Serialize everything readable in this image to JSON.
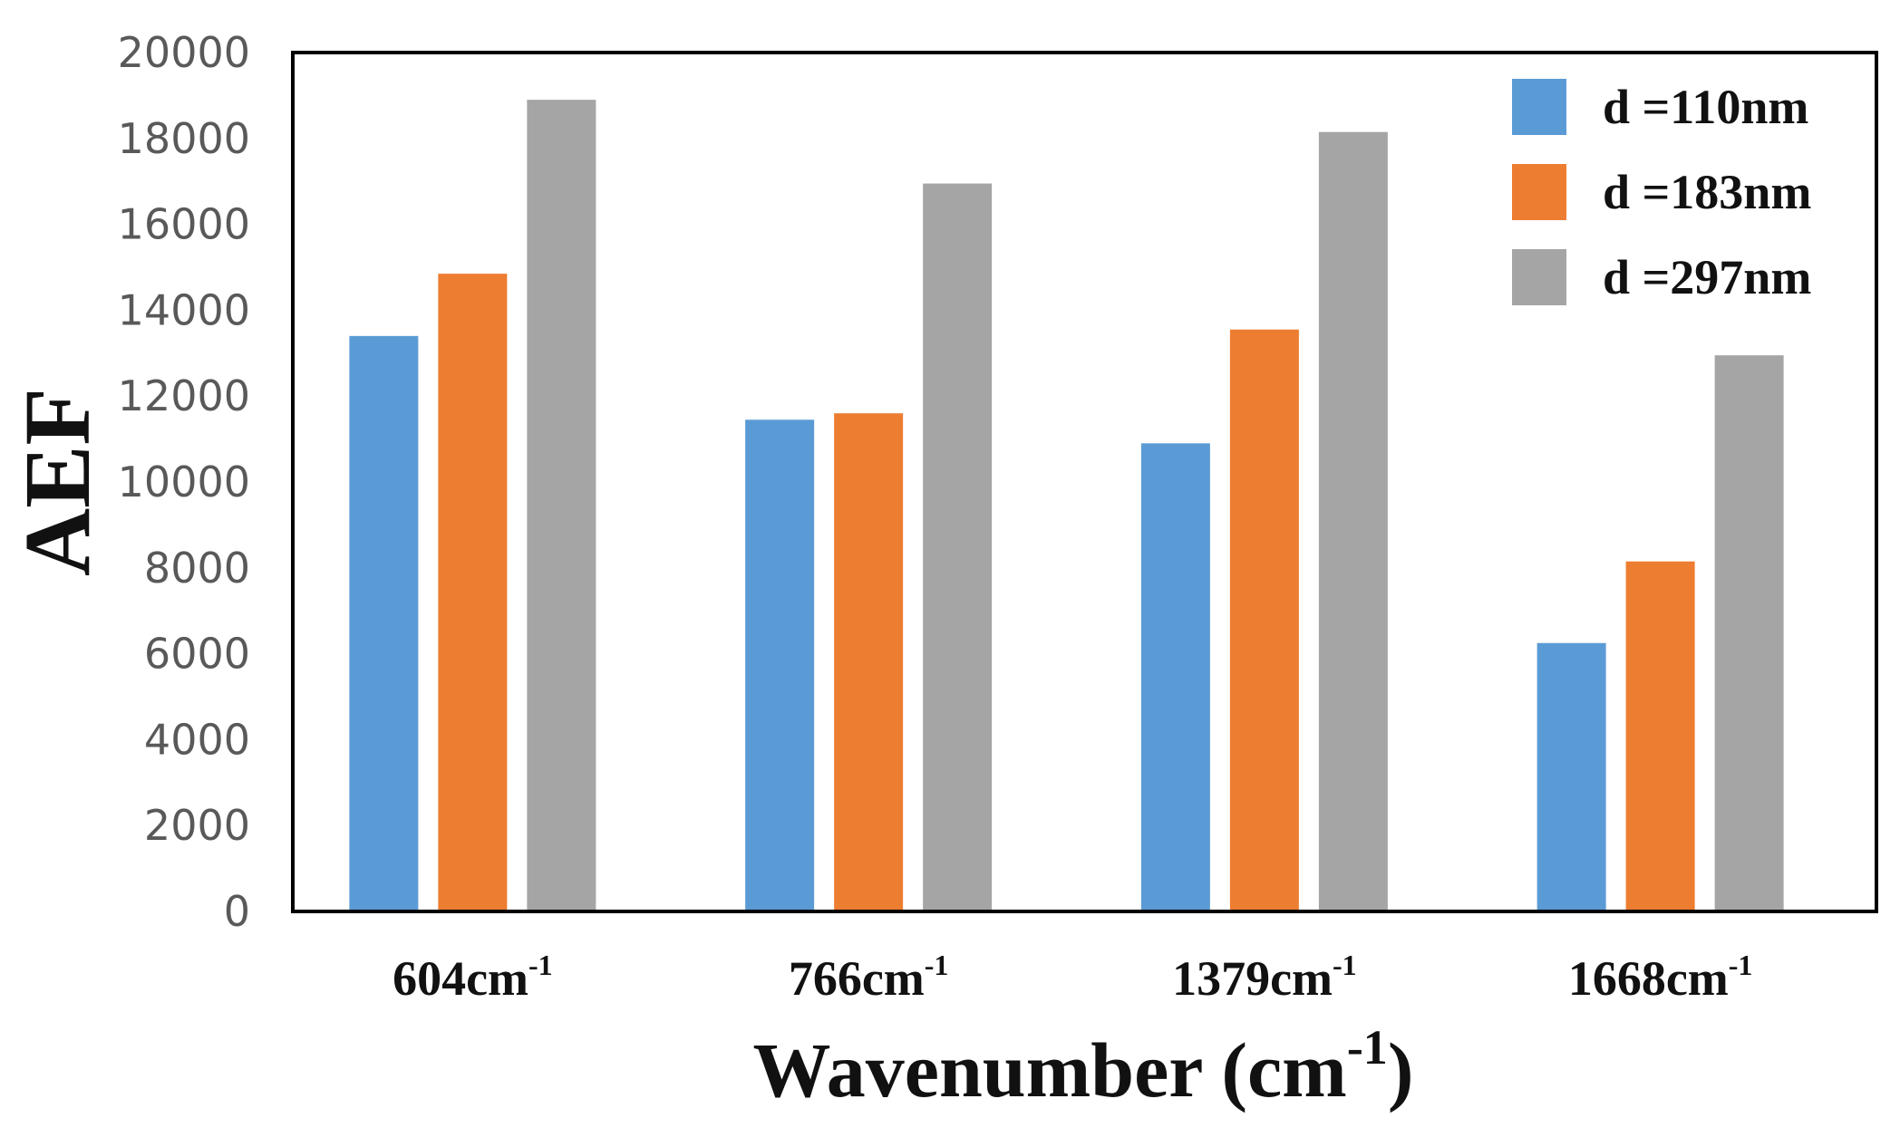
{
  "chart_data": {
    "type": "bar",
    "title": "",
    "xlabel": "Wavenumber (cm",
    "xlabel_sup": "-1",
    "xlabel_tail": ")",
    "ylabel": "AEF",
    "ylim": [
      0,
      20000
    ],
    "yticks": [
      0,
      2000,
      4000,
      6000,
      8000,
      10000,
      12000,
      14000,
      16000,
      18000,
      20000
    ],
    "categories": [
      {
        "base": "604cm",
        "sup": "-1"
      },
      {
        "base": "766cm",
        "sup": "-1"
      },
      {
        "base": "1379cm",
        "sup": "-1"
      },
      {
        "base": "1668cm",
        "sup": "-1"
      }
    ],
    "series": [
      {
        "name": "d =110nm",
        "color": "#5b9bd5",
        "values": [
          13400,
          11450,
          10900,
          6250
        ]
      },
      {
        "name": "d =183nm",
        "color": "#ed7d31",
        "values": [
          14850,
          11600,
          13550,
          8150
        ]
      },
      {
        "name": "d =297nm",
        "color": "#a5a5a5",
        "values": [
          18900,
          16950,
          18150,
          12950
        ]
      }
    ],
    "legend_position": "top-right",
    "grid": false
  }
}
